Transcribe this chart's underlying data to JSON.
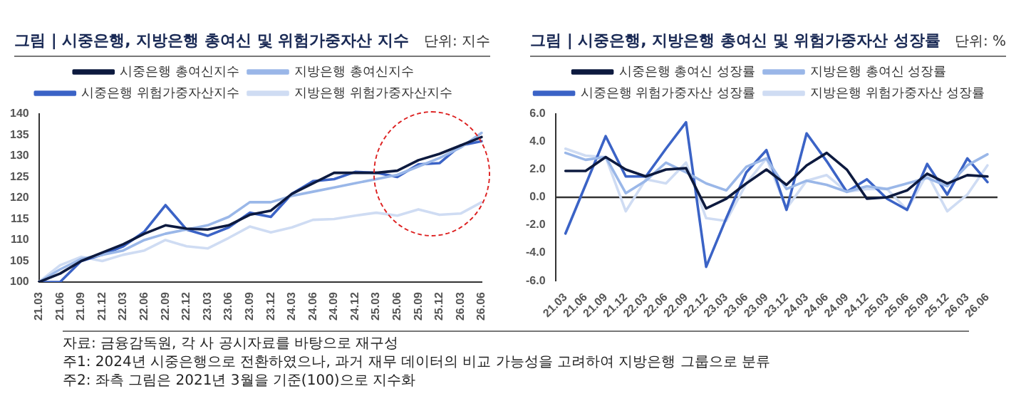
{
  "chart_data": [
    {
      "type": "line",
      "title": "그림 | 시중은행, 지방은행 총여신 및 위험가중자산 지수",
      "annotations": [
        "단위: 지수",
        "자료: 금융감독원, 각 사 공시자료를 바탕으로 재구성",
        "주1: 2024년 시중은행으로 전환하였으나, 과거 재무 데이터의 비교 가능성을 고려하여 지방은행 그룹으로 분류",
        "주2: 좌측 그림은 2021년 3월을 기준(100)으로 지수화"
      ],
      "categories": [
        "21.03",
        "21.06",
        "21.09",
        "21.12",
        "22.03",
        "22.06",
        "22.09",
        "22.12",
        "23.03",
        "23.06",
        "23.09",
        "23.12",
        "24.03",
        "24.06",
        "24.09",
        "24.12",
        "25.03",
        "25.06",
        "25.09",
        "25.12",
        "26.03",
        "26.06"
      ],
      "ylim": [
        100,
        140
      ],
      "yticks": [
        100,
        105,
        110,
        115,
        120,
        125,
        130,
        135,
        140
      ],
      "grid": false,
      "legend": "top",
      "marker": "none",
      "line_style": "solid",
      "series": [
        {
          "name": "시중은행 총여신지수",
          "color": "#0d1a3f",
          "values": [
            100,
            102,
            105,
            107,
            109,
            111.5,
            113.5,
            112.7,
            112.5,
            113.5,
            116,
            117,
            121,
            123.5,
            126,
            126,
            126,
            126.5,
            129,
            130.5,
            132.5,
            134.5
          ]
        },
        {
          "name": "지방은행 총여신지수",
          "color": "#9ab7e8",
          "values": [
            100,
            103,
            105.5,
            106.5,
            107.5,
            110,
            111.5,
            112.5,
            113.5,
            115.5,
            119,
            119,
            120.5,
            121.5,
            122.5,
            123.5,
            124.5,
            125.5,
            127.5,
            129.5,
            132,
            135.5
          ]
        },
        {
          "name": "시중은행 위험가중자산지수",
          "color": "#3b63c6",
          "values": [
            100,
            100,
            105,
            106.5,
            108.5,
            112,
            118.3,
            112.5,
            111,
            113,
            116.5,
            115.5,
            121,
            124,
            124.5,
            126.2,
            126,
            125,
            128,
            128.3,
            132.5,
            133.5
          ]
        },
        {
          "name": "지방은행 위험가중자산지수",
          "color": "#cfdcf3",
          "values": [
            100,
            104,
            106,
            105,
            106.5,
            107.5,
            110,
            108.5,
            108,
            110.5,
            113.2,
            111.8,
            113,
            114.8,
            115,
            115.8,
            116.5,
            115.8,
            117.3,
            116,
            116.3,
            119
          ]
        }
      ]
    },
    {
      "type": "line",
      "title": "그림 | 시중은행, 지방은행 총여신 및 위험가중자산 성장률",
      "annotations": [
        "단위: %"
      ],
      "categories": [
        "21.03",
        "21.06",
        "21.09",
        "21.12",
        "22.03",
        "22.06",
        "22.09",
        "22.12",
        "23.03",
        "23.06",
        "23.09",
        "23.12",
        "24.03",
        "24.06",
        "24.09",
        "24.12",
        "25.03",
        "25.06",
        "25.09",
        "25.12",
        "26.03",
        "26.06"
      ],
      "ylim": [
        -6,
        6
      ],
      "ref_lines": [
        {
          "axis": "y",
          "value": 0,
          "color": "#333333"
        }
      ],
      "yticks": [
        {
          "value": -6,
          "label": "-6.0"
        },
        {
          "value": -4,
          "label": "-4.0"
        },
        {
          "value": -2,
          "label": "-2.0"
        },
        {
          "value": 0,
          "label": "0.0"
        },
        {
          "value": 2,
          "label": "2.0"
        },
        {
          "value": 4,
          "label": "4.0"
        },
        {
          "value": 6,
          "label": "6.0"
        }
      ],
      "grid": false,
      "legend": "top",
      "marker": "none",
      "line_style": "solid",
      "series": [
        {
          "name": "시중은행 총여신 성장률",
          "color": "#0d1a3f",
          "values": [
            1.9,
            1.9,
            2.9,
            2.0,
            1.5,
            2.0,
            2.1,
            -0.8,
            -0.1,
            1.0,
            2.0,
            0.9,
            2.3,
            3.2,
            2.0,
            -0.1,
            0.0,
            0.5,
            1.7,
            1.0,
            1.6,
            1.5
          ]
        },
        {
          "name": "지방은행 총여신 성장률",
          "color": "#9ab7e8",
          "values": [
            3.2,
            2.7,
            2.9,
            0.3,
            1.2,
            2.5,
            1.8,
            1.0,
            0.5,
            2.2,
            2.8,
            0.6,
            1.2,
            0.9,
            0.4,
            0.8,
            0.6,
            1.0,
            1.4,
            0.8,
            2.3,
            3.1
          ]
        },
        {
          "name": "시중은행 위험가중자산 성장률",
          "color": "#3b63c6",
          "values": [
            -2.6,
            0.9,
            4.4,
            1.5,
            1.5,
            3.5,
            5.4,
            -5.0,
            -1.5,
            1.8,
            3.4,
            -0.9,
            4.6,
            2.6,
            0.4,
            1.3,
            -0.1,
            -0.9,
            2.4,
            0.2,
            2.8,
            1.1
          ]
        },
        {
          "name": "지방은행 위험가중자산 성장률",
          "color": "#cfdcf3",
          "values": [
            3.5,
            3.0,
            2.9,
            -1.0,
            1.3,
            1.0,
            2.5,
            -1.5,
            -1.7,
            1.0,
            2.8,
            -0.8,
            1.2,
            1.6,
            0.4,
            0.6,
            0.6,
            -0.9,
            1.7,
            -1.0,
            0.2,
            2.3
          ]
        }
      ]
    }
  ]
}
